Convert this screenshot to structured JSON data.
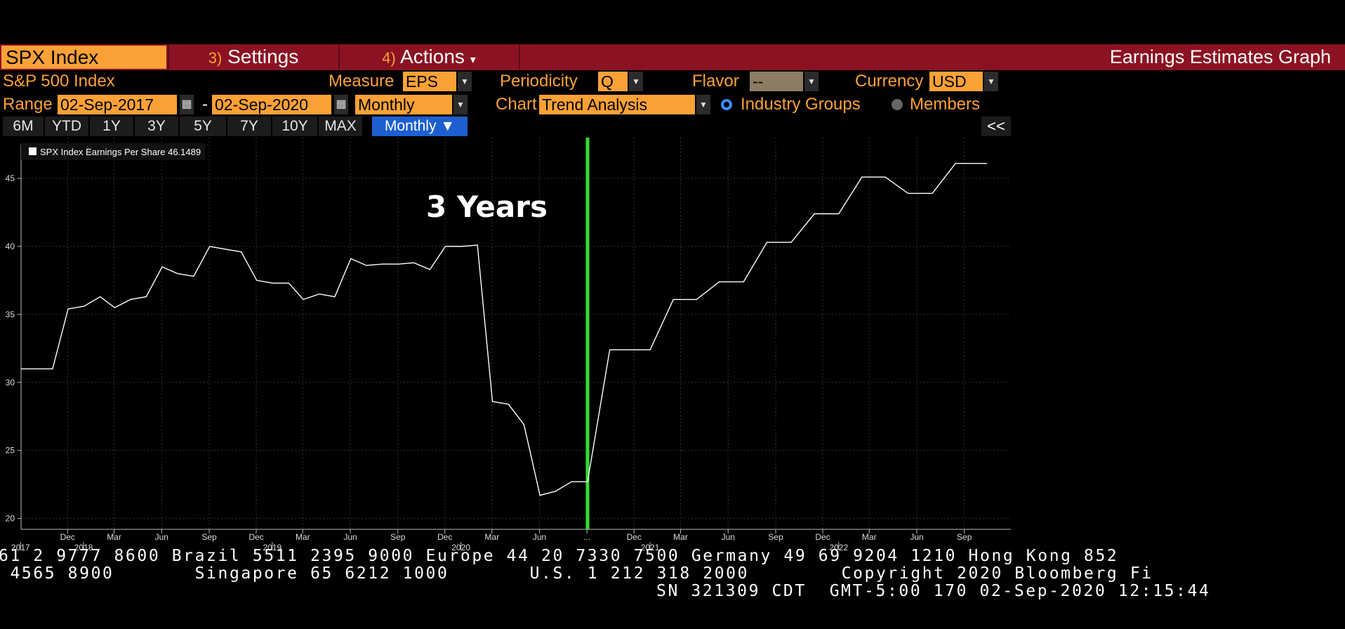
{
  "toolbar": {
    "security": "SPX Index",
    "settings_key": "3)",
    "settings_label": "Settings",
    "actions_key": "4)",
    "actions_label": "Actions",
    "actions_caret": "▾",
    "graph_title": "Earnings Estimates Graph"
  },
  "controls": {
    "security_name": "S&P 500 Index",
    "measure_label": "Measure",
    "measure_value": "EPS",
    "periodicity_label": "Periodicity",
    "periodicity_value": "Q",
    "flavor_label": "Flavor",
    "flavor_value": "--",
    "currency_label": "Currency",
    "currency_value": "USD",
    "range_label": "Range",
    "range_start": "02-Sep-2017",
    "range_dash": "-",
    "range_end": "02-Sep-2020",
    "range_freq": "Monthly",
    "chart_label": "Chart",
    "chart_value": "Trend Analysis",
    "option_industry": "Industry Groups",
    "option_members": "Members",
    "selected_option": "Industry Groups"
  },
  "periods": {
    "buttons": [
      "6M",
      "YTD",
      "1Y",
      "3Y",
      "5Y",
      "7Y",
      "10Y",
      "MAX"
    ],
    "frequency": "Monthly ▼",
    "collapse": "<<"
  },
  "chart_data": {
    "type": "line",
    "legend": "SPX Index Earnings Per Share 46.1489",
    "annotation": "3 Years",
    "ylim": [
      19.2,
      48
    ],
    "y_ticks": [
      20,
      25,
      30,
      35,
      40,
      45
    ],
    "x_ticks": [
      {
        "date": "2017-12-01",
        "label": "Dec"
      },
      {
        "date": "2018-03-01",
        "label": "Mar"
      },
      {
        "date": "2018-06-01",
        "label": "Jun"
      },
      {
        "date": "2018-09-01",
        "label": "Sep"
      },
      {
        "date": "2018-12-01",
        "label": "Dec"
      },
      {
        "date": "2019-03-01",
        "label": "Mar"
      },
      {
        "date": "2019-06-01",
        "label": "Jun"
      },
      {
        "date": "2019-09-01",
        "label": "Sep"
      },
      {
        "date": "2019-12-01",
        "label": "Dec"
      },
      {
        "date": "2020-03-01",
        "label": "Mar"
      },
      {
        "date": "2020-06-01",
        "label": "Jun"
      },
      {
        "date": "2020-09-01",
        "label": "..."
      },
      {
        "date": "2020-12-01",
        "label": "Dec"
      },
      {
        "date": "2021-03-01",
        "label": "Mar"
      },
      {
        "date": "2021-06-01",
        "label": "Jun"
      },
      {
        "date": "2021-09-01",
        "label": "Sep"
      },
      {
        "date": "2021-12-01",
        "label": "Dec"
      },
      {
        "date": "2022-03-01",
        "label": "Mar"
      },
      {
        "date": "2022-06-01",
        "label": "Jun"
      },
      {
        "date": "2022-09-01",
        "label": "Sep"
      }
    ],
    "year_labels": [
      {
        "date": "2017-09-01",
        "label": "2017"
      },
      {
        "date": "2018-01-01",
        "label": "2018"
      },
      {
        "date": "2019-01-01",
        "label": "2019"
      },
      {
        "date": "2020-01-01",
        "label": "2020"
      },
      {
        "date": "2021-01-01",
        "label": "2021"
      },
      {
        "date": "2022-01-01",
        "label": "2022"
      }
    ],
    "vertical_marker": {
      "date": "2020-09-02",
      "color": "#33dd33"
    },
    "series": [
      {
        "color": "#ffffff",
        "points": [
          [
            "2017-09-02",
            31.0
          ],
          [
            "2017-10-02",
            31.0
          ],
          [
            "2017-11-02",
            31.0
          ],
          [
            "2017-12-02",
            35.4
          ],
          [
            "2018-01-02",
            35.6
          ],
          [
            "2018-02-02",
            36.3
          ],
          [
            "2018-03-02",
            35.5
          ],
          [
            "2018-04-02",
            36.1
          ],
          [
            "2018-05-02",
            36.3
          ],
          [
            "2018-06-02",
            38.5
          ],
          [
            "2018-07-02",
            38.0
          ],
          [
            "2018-08-02",
            37.8
          ],
          [
            "2018-09-02",
            40.0
          ],
          [
            "2018-10-02",
            39.8
          ],
          [
            "2018-11-02",
            39.6
          ],
          [
            "2018-12-02",
            37.5
          ],
          [
            "2019-01-02",
            37.3
          ],
          [
            "2019-02-02",
            37.3
          ],
          [
            "2019-03-02",
            36.1
          ],
          [
            "2019-04-02",
            36.5
          ],
          [
            "2019-05-02",
            36.3
          ],
          [
            "2019-06-02",
            39.1
          ],
          [
            "2019-07-02",
            38.6
          ],
          [
            "2019-08-02",
            38.7
          ],
          [
            "2019-09-02",
            38.7
          ],
          [
            "2019-10-02",
            38.8
          ],
          [
            "2019-11-02",
            38.3
          ],
          [
            "2019-12-02",
            40.0
          ],
          [
            "2020-01-02",
            40.0
          ],
          [
            "2020-02-02",
            40.1
          ],
          [
            "2020-03-02",
            28.6
          ],
          [
            "2020-04-02",
            28.4
          ],
          [
            "2020-05-02",
            26.9
          ],
          [
            "2020-06-02",
            21.7
          ],
          [
            "2020-07-02",
            22.0
          ],
          [
            "2020-08-02",
            22.7
          ],
          [
            "2020-09-02",
            22.7
          ],
          [
            "2020-10-15",
            32.4
          ],
          [
            "2021-01-01",
            32.4
          ],
          [
            "2021-02-15",
            36.1
          ],
          [
            "2021-04-01",
            36.1
          ],
          [
            "2021-05-15",
            37.4
          ],
          [
            "2021-07-01",
            37.4
          ],
          [
            "2021-08-15",
            40.3
          ],
          [
            "2021-10-01",
            40.3
          ],
          [
            "2021-11-15",
            42.4
          ],
          [
            "2022-01-01",
            42.4
          ],
          [
            "2022-02-15",
            45.1
          ],
          [
            "2022-04-01",
            45.1
          ],
          [
            "2022-05-15",
            43.9
          ],
          [
            "2022-07-01",
            43.9
          ],
          [
            "2022-08-15",
            46.1
          ],
          [
            "2022-10-15",
            46.1
          ]
        ]
      }
    ]
  },
  "ticker": {
    "line1": "61 2 9777 8600 Brazil 5511 2395 9000 Europe 44 20 7330 7500 Germany 49 69 9204 1210 Hong Kong 852",
    "line2": " 4565 8900       Singapore 65 6212 1000       U.S. 1 212 318 2000        Copyright 2020 Bloomberg Fi",
    "line3": "SN 321309 CDT  GMT-5:00 170 02-Sep-2020 12:15:44"
  }
}
